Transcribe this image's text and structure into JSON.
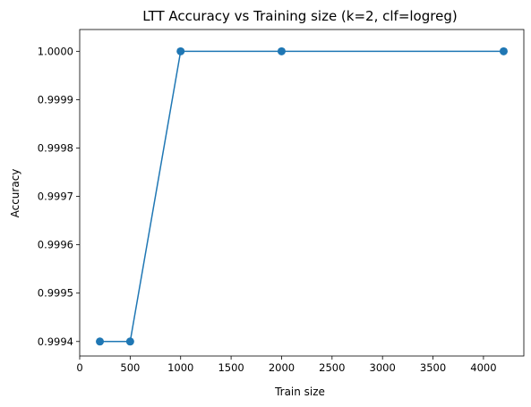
{
  "chart_data": {
    "type": "line",
    "title": "LTT Accuracy vs Training size (k=2, clf=logreg)",
    "xlabel": "Train size",
    "ylabel": "Accuracy",
    "xlim": [
      0,
      4400
    ],
    "ylim": [
      0.99937,
      1.000045
    ],
    "x_ticks": [
      0,
      500,
      1000,
      1500,
      2000,
      2500,
      3000,
      3500,
      4000
    ],
    "x_tick_labels": [
      "0",
      "500",
      "1000",
      "1500",
      "2000",
      "2500",
      "3000",
      "3500",
      "4000"
    ],
    "y_ticks": [
      0.9994,
      0.9995,
      0.9996,
      0.9997,
      0.9998,
      0.9999,
      1.0
    ],
    "y_tick_labels": [
      "0.9994",
      "0.9995",
      "0.9996",
      "0.9997",
      "0.9998",
      "0.9999",
      "1.0000"
    ],
    "grid": false,
    "legend": "none",
    "series": [
      {
        "color": "#1f77b4",
        "marker": "circle",
        "x": [
          200,
          500,
          1000,
          2000,
          4200
        ],
        "y": [
          0.9994,
          0.9994,
          1.0,
          1.0,
          1.0
        ]
      }
    ]
  }
}
